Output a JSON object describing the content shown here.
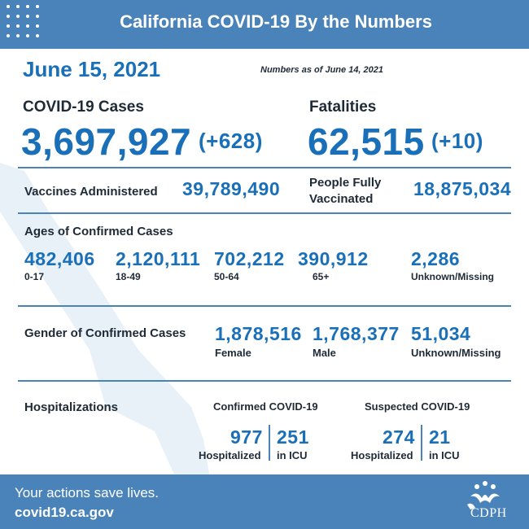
{
  "header": {
    "title": "California COVID-19 By the Numbers"
  },
  "date": "June 15, 2021",
  "as_of": "Numbers as of June 14, 2021",
  "cases": {
    "label": "COVID-19 Cases",
    "value": "3,697,927",
    "change": "(+628)"
  },
  "fatalities": {
    "label": "Fatalities",
    "value": "62,515",
    "change": "(+10)"
  },
  "vaccines": {
    "label": "Vaccines Administered",
    "value": "39,789,490"
  },
  "fully_vaccinated": {
    "label": "People Fully Vaccinated",
    "value": "18,875,034"
  },
  "ages": {
    "title": "Ages of Confirmed Cases",
    "groups": [
      {
        "value": "482,406",
        "label": "0-17"
      },
      {
        "value": "2,120,111",
        "label": "18-49"
      },
      {
        "value": "702,212",
        "label": "50-64"
      },
      {
        "value": "390,912",
        "label": "65+"
      },
      {
        "value": "2,286",
        "label": "Unknown/Missing"
      }
    ]
  },
  "gender": {
    "title": "Gender of Confirmed Cases",
    "groups": [
      {
        "value": "1,878,516",
        "label": "Female"
      },
      {
        "value": "1,768,377",
        "label": "Male"
      },
      {
        "value": "51,034",
        "label": "Unknown/Missing"
      }
    ]
  },
  "hospitalizations": {
    "title": "Hospitalizations",
    "confirmed": {
      "title": "Confirmed COVID-19",
      "hospitalized": "977",
      "hospitalized_label": "Hospitalized",
      "icu": "251",
      "icu_label": "in ICU"
    },
    "suspected": {
      "title": "Suspected COVID-19",
      "hospitalized": "274",
      "hospitalized_label": "Hospitalized",
      "icu": "21",
      "icu_label": "in ICU"
    }
  },
  "footer": {
    "tagline": "Your actions save lives.",
    "url": "covid19.ca.gov",
    "logo_text": "CDPH"
  },
  "colors": {
    "brand_blue": "#4a83b9",
    "number_blue": "#1a70b8",
    "text_dark": "#1f2a37"
  }
}
